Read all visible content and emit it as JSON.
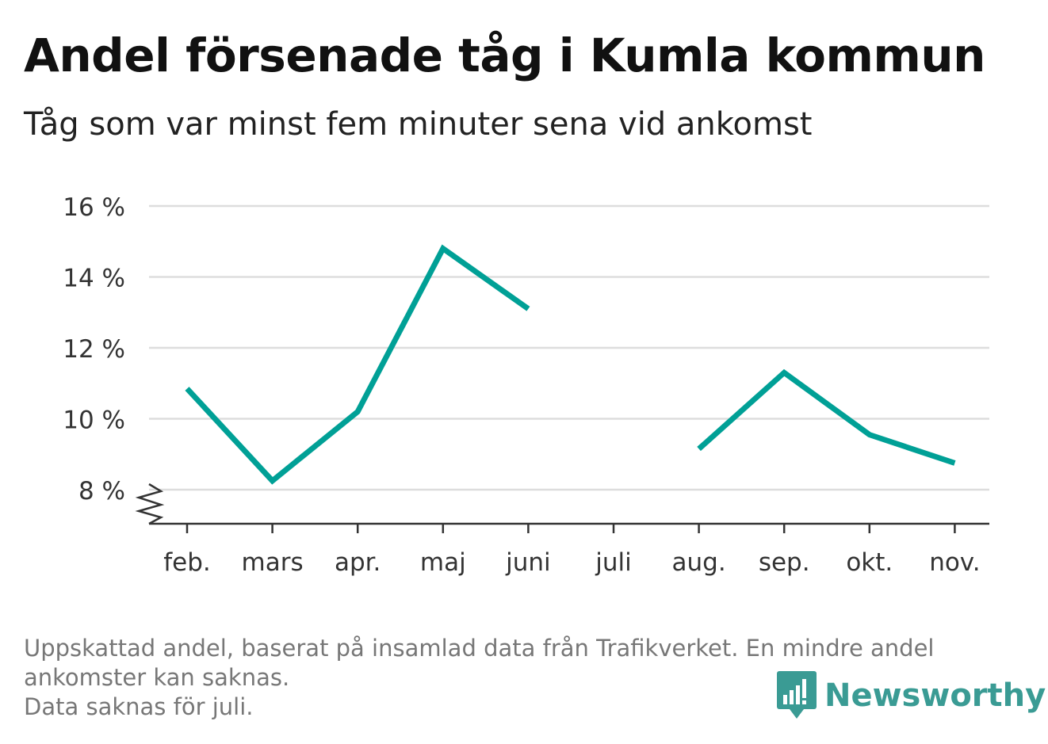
{
  "title": "Andel försenade tåg i Kumla kommun",
  "subtitle": "Tåg som var minst fem minuter sena vid ankomst",
  "chart_data": {
    "type": "line",
    "categories": [
      "feb.",
      "mars",
      "apr.",
      "maj",
      "juni",
      "juli",
      "aug.",
      "sep.",
      "okt.",
      "nov."
    ],
    "series": [
      {
        "values": [
          10.85,
          8.25,
          10.2,
          14.8,
          13.1,
          null,
          9.15,
          11.3,
          9.55,
          8.75
        ]
      }
    ],
    "y_ticks": [
      8,
      10,
      12,
      14,
      16
    ],
    "y_tick_labels": [
      "8 %",
      "10 %",
      "12 %",
      "14 %",
      "16 %"
    ],
    "ylim": [
      7,
      16
    ],
    "y_axis_break": true,
    "grid": true,
    "line_color": "#00a096",
    "xlabel": "",
    "ylabel": ""
  },
  "footnote": {
    "line1": "Uppskattad andel, baserat på insamlad data från Trafikverket. En mindre andel",
    "line2": "ankomster kan saknas.",
    "line3": "Data saknas för juli."
  },
  "brand": {
    "name": "Newsworthy",
    "logo_icon": "bar-chart-speech-bubble-icon",
    "color": "#3a9b94"
  }
}
